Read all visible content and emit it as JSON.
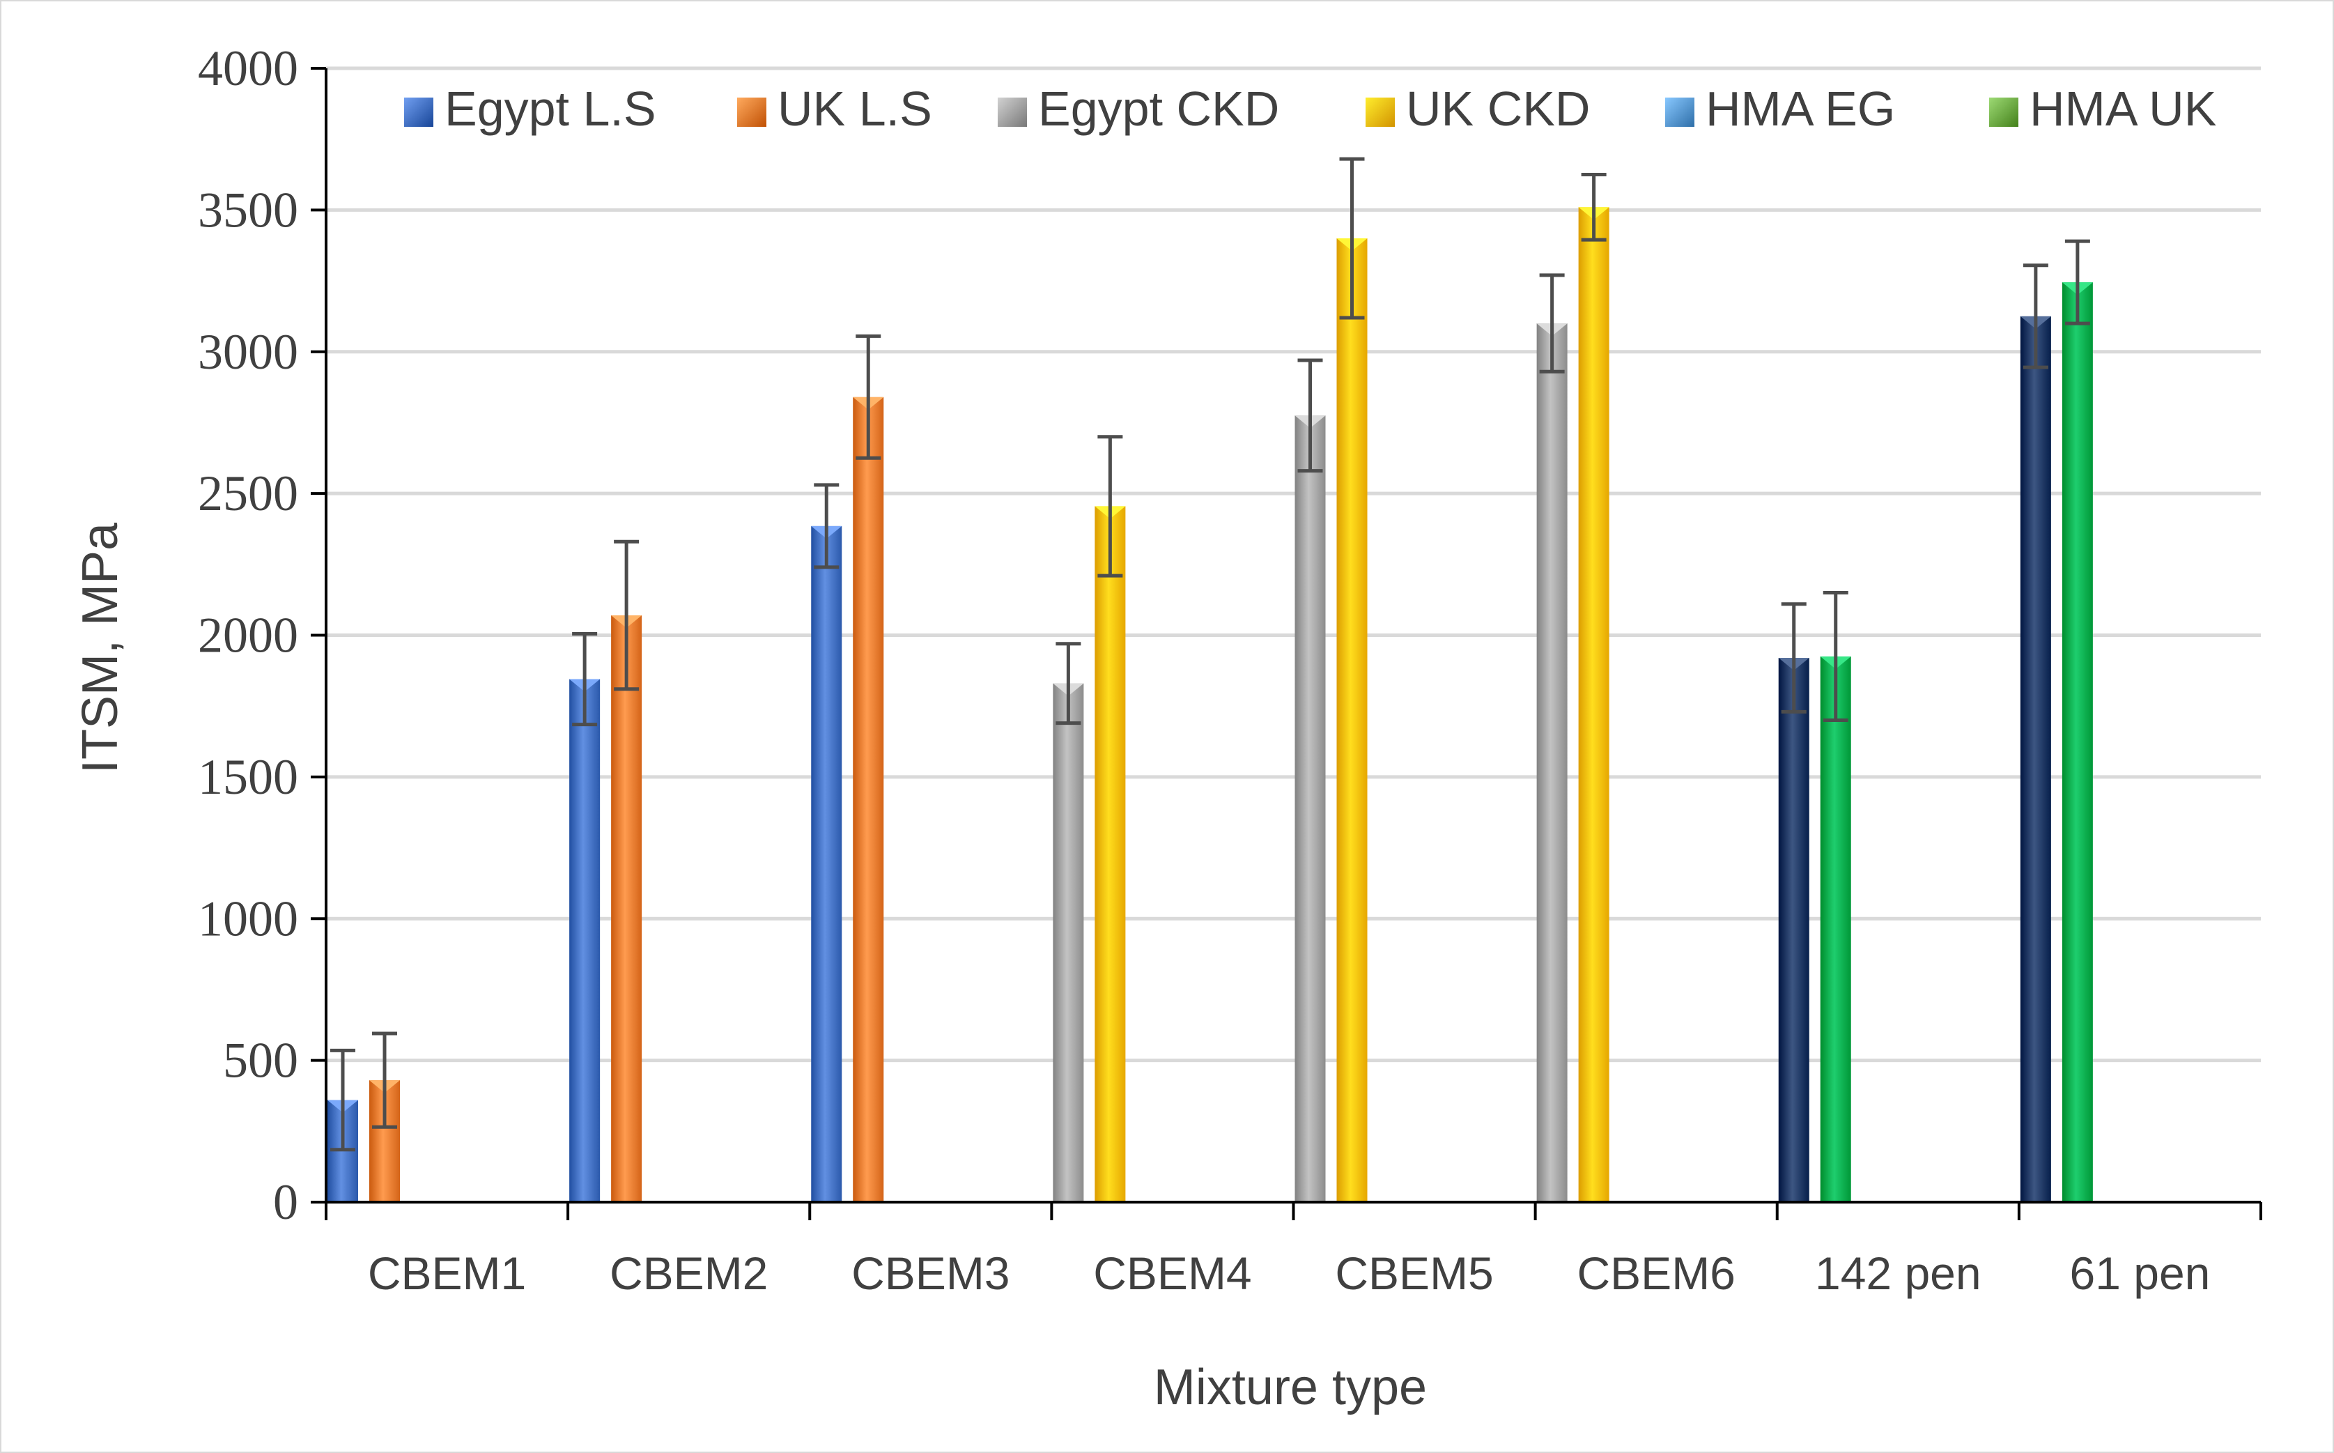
{
  "chart_data": {
    "type": "bar",
    "title": "",
    "xlabel": "Mixture type",
    "ylabel": "ITSM, MPa",
    "ylim": [
      0,
      4000
    ],
    "ytick_step": 500,
    "ytick_labels": [
      "0",
      "500",
      "1000",
      "1500",
      "2000",
      "2500",
      "3000",
      "3500",
      "4000"
    ],
    "grid": true,
    "legend_position": "top",
    "categories": [
      "CBEM1",
      "CBEM2",
      "CBEM3",
      "CBEM4",
      "CBEM5",
      "CBEM6",
      "142 pen",
      "61 pen"
    ],
    "series": [
      {
        "name": "Egypt L.S",
        "color": "#4472C4",
        "values": [
          360,
          1845,
          2385,
          null,
          null,
          null,
          null,
          null
        ],
        "errors": [
          175,
          160,
          145,
          null,
          null,
          null,
          null,
          null
        ]
      },
      {
        "name": "UK L.S",
        "color": "#ED7D31",
        "values": [
          430,
          2070,
          2840,
          null,
          null,
          null,
          null,
          null
        ],
        "errors": [
          165,
          260,
          215,
          null,
          null,
          null,
          null,
          null
        ]
      },
      {
        "name": "Egypt CKD",
        "color": "#A5A5A5",
        "values": [
          null,
          null,
          null,
          1830,
          2775,
          3100,
          null,
          null
        ],
        "errors": [
          null,
          null,
          null,
          140,
          195,
          170,
          null,
          null
        ]
      },
      {
        "name": "UK CKD",
        "color": "#FFC000",
        "values": [
          null,
          null,
          null,
          2455,
          3400,
          3510,
          null,
          null
        ],
        "errors": [
          null,
          null,
          null,
          245,
          280,
          115,
          null,
          null
        ]
      },
      {
        "name": "HMA EG",
        "color": "#5B9BD5",
        "bar_color": "#1F3864",
        "values": [
          null,
          null,
          null,
          null,
          null,
          null,
          1920,
          3125
        ],
        "errors": [
          null,
          null,
          null,
          null,
          null,
          null,
          190,
          180
        ]
      },
      {
        "name": "HMA UK",
        "color": "#70AD47",
        "bar_color": "#00B050",
        "values": [
          null,
          null,
          null,
          null,
          null,
          null,
          1925,
          3245
        ],
        "errors": [
          null,
          null,
          null,
          null,
          null,
          null,
          225,
          145
        ]
      }
    ]
  }
}
